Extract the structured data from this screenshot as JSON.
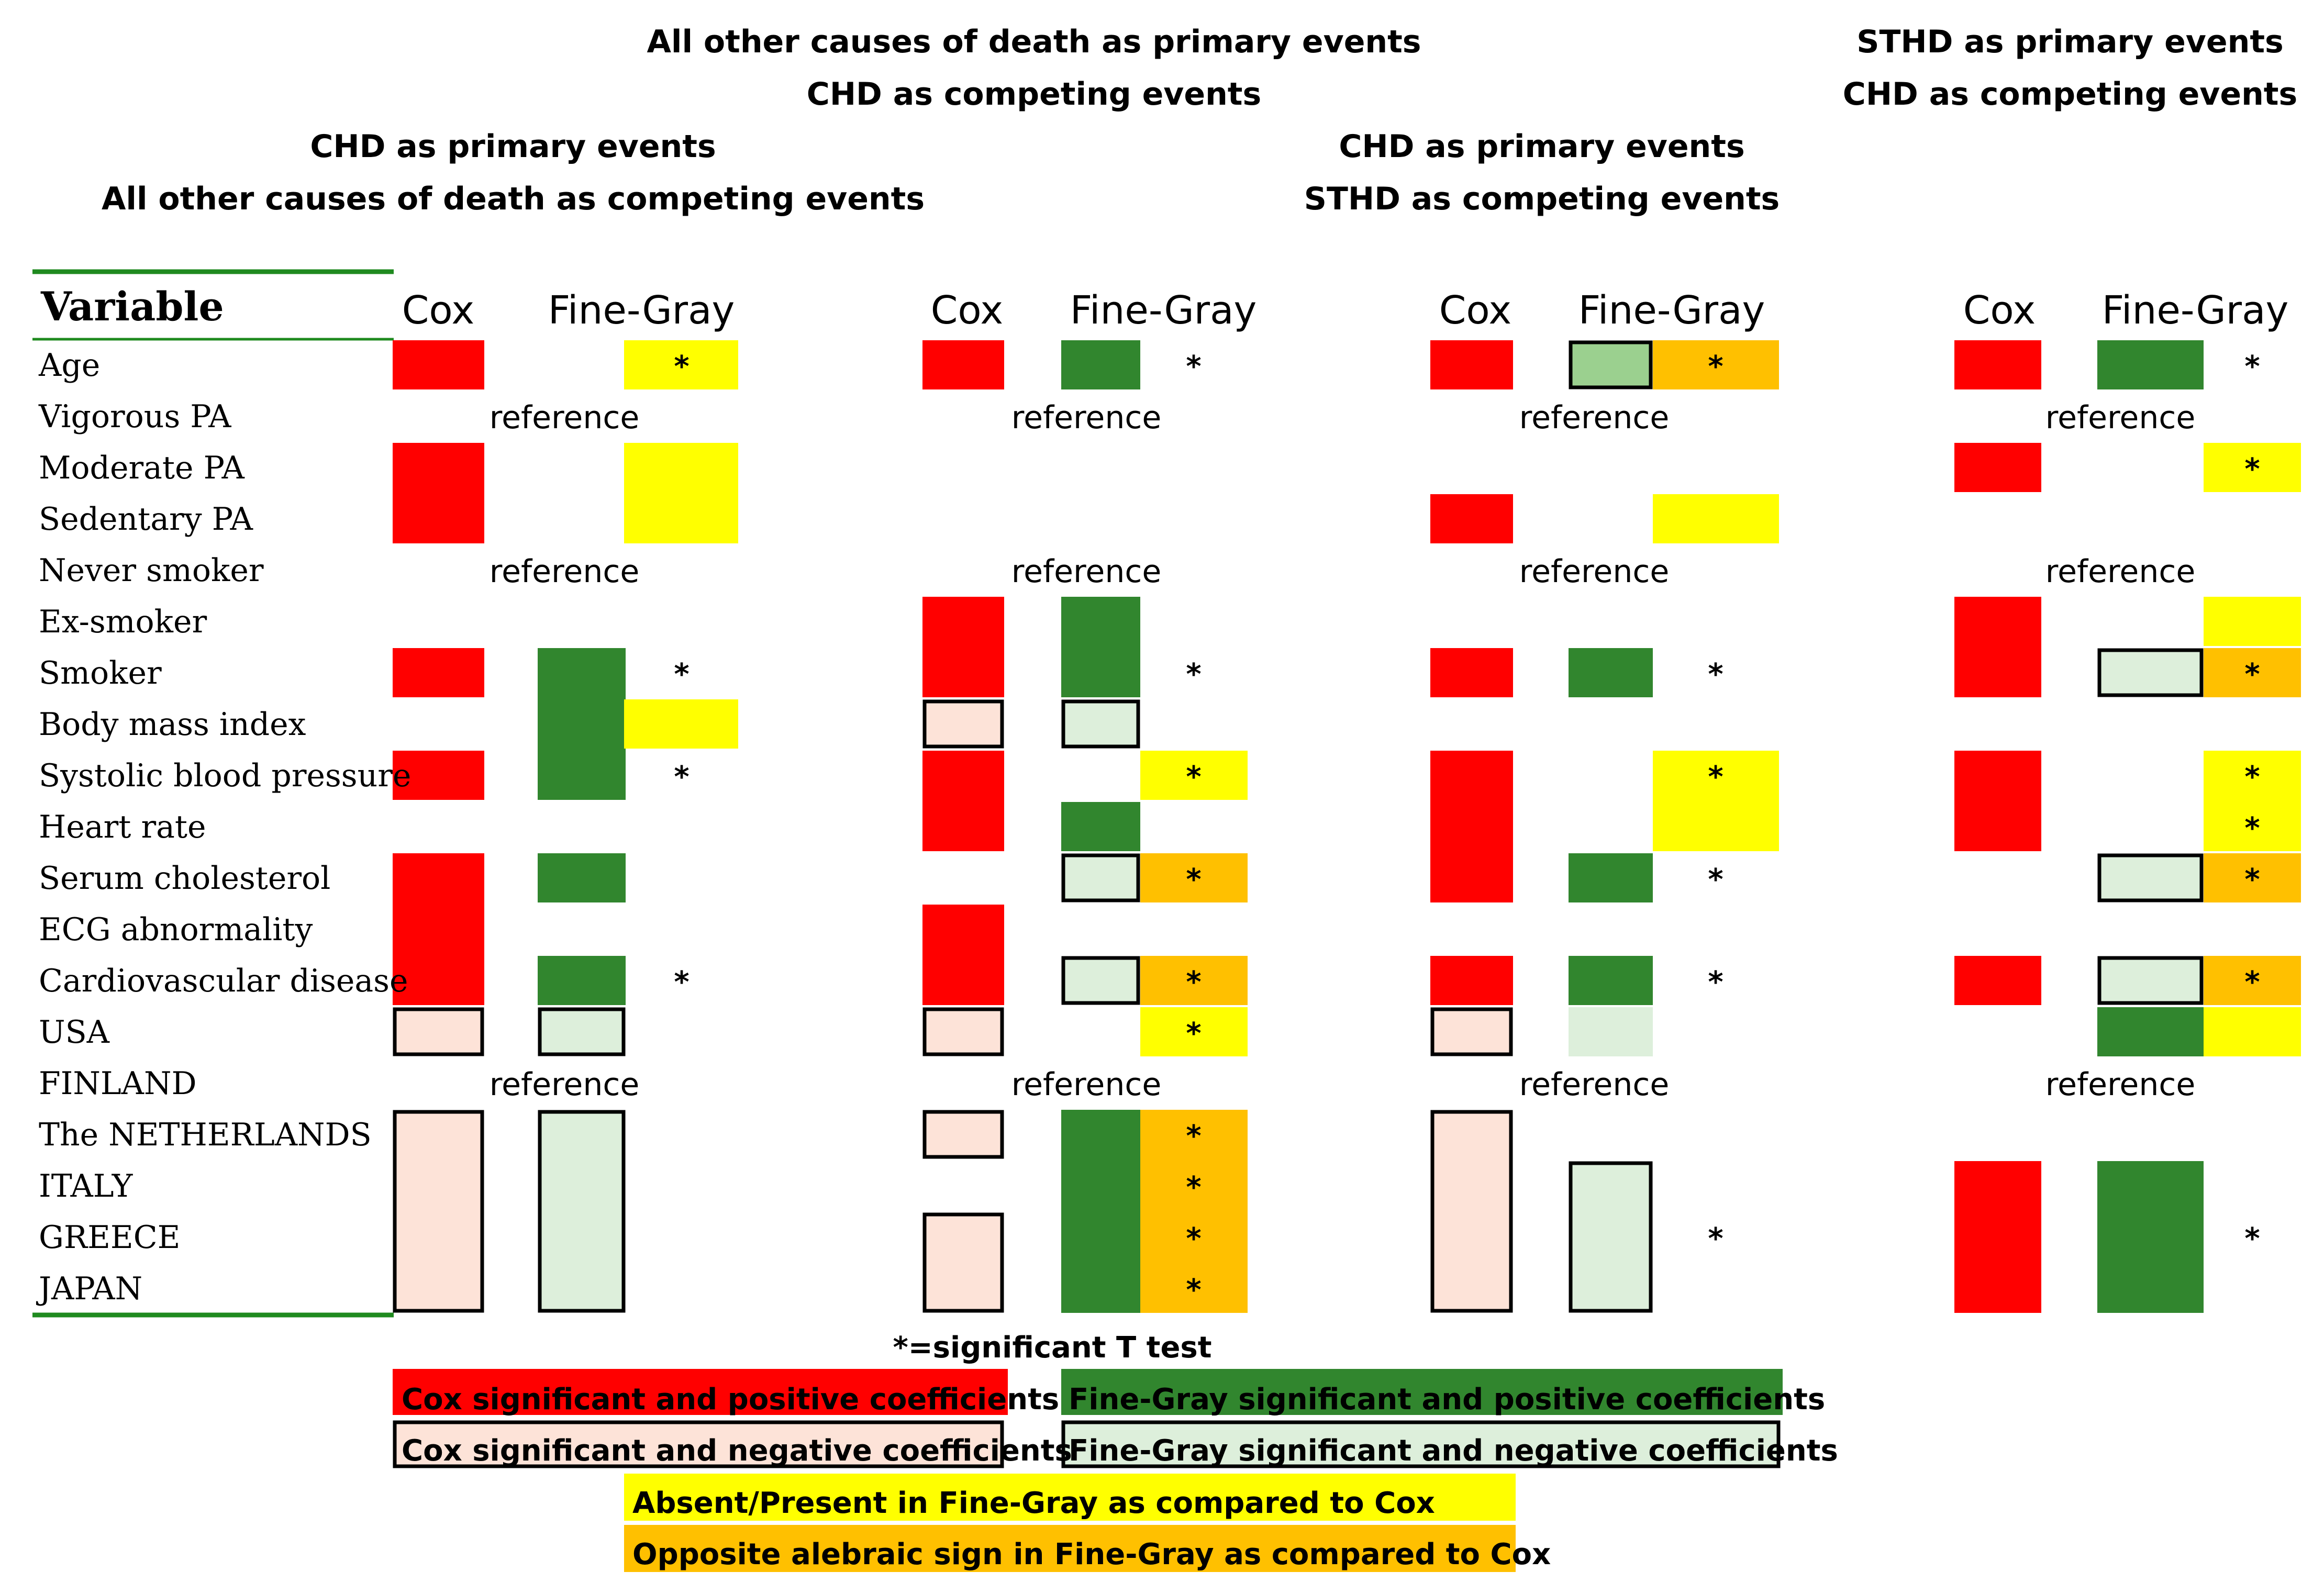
{
  "headers": {
    "top_center_1": "All other causes of death as primary events",
    "top_center_2": "CHD as competing events",
    "top_right_1": "STHD as primary events",
    "top_right_2": "CHD as competing events",
    "p1_1": "CHD as primary events",
    "p1_2": "All other causes of death as competing events",
    "p3_1": "CHD as primary events",
    "p3_2": "STHD as competing events"
  },
  "variable_header": "Variable",
  "cox_label": "Cox",
  "finegray_label": "Fine-Gray",
  "reference_label": "reference",
  "star": "*",
  "variables": [
    "Age",
    "Vigorous PA",
    "Moderate PA",
    "Sedentary PA",
    "Never smoker",
    "Ex-smoker",
    "Smoker",
    "Body mass index",
    "Systolic blood pressure",
    "Heart rate",
    "Serum cholesterol",
    "ECG abnormality",
    "Cardiovascular disease",
    "USA",
    "FINLAND",
    "The NETHERLANDS",
    "ITALY",
    "GREECE",
    "JAPAN"
  ],
  "significance_note": "*=significant T test",
  "legend": {
    "cox_pos": "Cox significant and positive coefficients",
    "cox_neg": "Cox significant and negative coefficients",
    "fg_pos": "Fine-Gray significant and positive coefficients",
    "fg_neg": "Fine-Gray significant and negative coefficients",
    "absent": "Absent/Present in Fine-Gray as compared to Cox",
    "opposite": "Opposite alebraic sign in Fine-Gray as compared to Cox"
  },
  "colors": {
    "cox_pos": "#ff0000",
    "cox_neg": "#fde3d8",
    "fg_pos": "#31862e",
    "fg_neg": "#ddefdb",
    "fg_neg_light": "#9bd08f",
    "absent": "#ffff00",
    "opposite": "#ffc000",
    "rule": "#1f8a1f"
  },
  "panels": [
    {
      "id": "p1",
      "reference_rows": [
        1,
        4,
        14
      ],
      "stars": [
        0,
        6,
        8,
        12
      ],
      "cells": [
        {
          "col": "cox",
          "from": 0,
          "to": 0,
          "fill": "cox_pos"
        },
        {
          "col": "cox",
          "from": 2,
          "to": 3,
          "fill": "cox_pos"
        },
        {
          "col": "cox",
          "from": 6,
          "to": 6,
          "fill": "cox_pos"
        },
        {
          "col": "cox",
          "from": 8,
          "to": 8,
          "fill": "cox_pos"
        },
        {
          "col": "cox",
          "from": 10,
          "to": 12,
          "fill": "cox_pos"
        },
        {
          "col": "cox",
          "from": 13,
          "to": 13,
          "fill": "cox_neg",
          "outline": true
        },
        {
          "col": "cox",
          "from": 15,
          "to": 18,
          "fill": "cox_neg",
          "outline": true
        },
        {
          "col": "fg",
          "from": 6,
          "to": 8,
          "fill": "fg_pos"
        },
        {
          "col": "fg",
          "from": 10,
          "to": 10,
          "fill": "fg_pos"
        },
        {
          "col": "fg",
          "from": 12,
          "to": 12,
          "fill": "fg_pos"
        },
        {
          "col": "fg",
          "from": 13,
          "to": 13,
          "fill": "fg_neg",
          "outline": true
        },
        {
          "col": "fg",
          "from": 15,
          "to": 18,
          "fill": "fg_neg",
          "outline": true
        },
        {
          "col": "mark",
          "from": 0,
          "to": 0,
          "fill": "absent"
        },
        {
          "col": "mark",
          "from": 2,
          "to": 3,
          "fill": "absent"
        },
        {
          "col": "mark",
          "from": 7,
          "to": 7,
          "fill": "absent"
        }
      ]
    },
    {
      "id": "p2",
      "reference_rows": [
        1,
        4,
        14
      ],
      "stars": [
        0,
        6,
        8,
        10,
        12,
        13,
        15,
        16,
        17,
        18
      ],
      "cells": [
        {
          "col": "cox",
          "from": 0,
          "to": 0,
          "fill": "cox_pos"
        },
        {
          "col": "cox",
          "from": 5,
          "to": 6,
          "fill": "cox_pos"
        },
        {
          "col": "cox",
          "from": 7,
          "to": 7,
          "fill": "cox_neg",
          "outline": true
        },
        {
          "col": "cox",
          "from": 8,
          "to": 9,
          "fill": "cox_pos"
        },
        {
          "col": "cox",
          "from": 11,
          "to": 12,
          "fill": "cox_pos"
        },
        {
          "col": "cox",
          "from": 13,
          "to": 13,
          "fill": "cox_neg",
          "outline": true
        },
        {
          "col": "cox",
          "from": 15,
          "to": 15,
          "fill": "cox_neg",
          "outline": true
        },
        {
          "col": "cox",
          "from": 17,
          "to": 18,
          "fill": "cox_neg",
          "outline": true
        },
        {
          "col": "fg",
          "from": 0,
          "to": 0,
          "fill": "fg_pos"
        },
        {
          "col": "fg",
          "from": 5,
          "to": 6,
          "fill": "fg_pos"
        },
        {
          "col": "fg",
          "from": 7,
          "to": 7,
          "fill": "fg_neg",
          "outline": true
        },
        {
          "col": "fg",
          "from": 9,
          "to": 9,
          "fill": "fg_pos"
        },
        {
          "col": "fg",
          "from": 10,
          "to": 10,
          "fill": "fg_neg",
          "outline": true
        },
        {
          "col": "fg",
          "from": 12,
          "to": 12,
          "fill": "fg_neg",
          "outline": true
        },
        {
          "col": "fg",
          "from": 15,
          "to": 18,
          "fill": "fg_pos"
        },
        {
          "col": "mark",
          "from": 8,
          "to": 8,
          "fill": "absent"
        },
        {
          "col": "mark",
          "from": 10,
          "to": 10,
          "fill": "opposite"
        },
        {
          "col": "mark",
          "from": 12,
          "to": 12,
          "fill": "opposite"
        },
        {
          "col": "mark",
          "from": 13,
          "to": 13,
          "fill": "absent"
        },
        {
          "col": "mark",
          "from": 15,
          "to": 18,
          "fill": "opposite"
        }
      ]
    },
    {
      "id": "p3",
      "reference_rows": [
        1,
        4,
        14
      ],
      "stars": [
        0,
        6,
        8,
        10,
        12,
        17
      ],
      "cells": [
        {
          "col": "cox",
          "from": 0,
          "to": 0,
          "fill": "cox_pos"
        },
        {
          "col": "cox",
          "from": 3,
          "to": 3,
          "fill": "cox_pos"
        },
        {
          "col": "cox",
          "from": 6,
          "to": 6,
          "fill": "cox_pos"
        },
        {
          "col": "cox",
          "from": 8,
          "to": 10,
          "fill": "cox_pos"
        },
        {
          "col": "cox",
          "from": 12,
          "to": 12,
          "fill": "cox_pos"
        },
        {
          "col": "cox",
          "from": 13,
          "to": 13,
          "fill": "cox_neg",
          "outline": true
        },
        {
          "col": "cox",
          "from": 15,
          "to": 18,
          "fill": "cox_neg",
          "outline": true
        },
        {
          "col": "fg",
          "from": 0,
          "to": 0,
          "fill": "fg_neg_light",
          "outline": true
        },
        {
          "col": "fg",
          "from": 6,
          "to": 6,
          "fill": "fg_pos"
        },
        {
          "col": "fg",
          "from": 10,
          "to": 10,
          "fill": "fg_pos"
        },
        {
          "col": "fg",
          "from": 12,
          "to": 12,
          "fill": "fg_pos"
        },
        {
          "col": "fg",
          "from": 13,
          "to": 13,
          "fill": "fg_neg"
        },
        {
          "col": "fg",
          "from": 16,
          "to": 18,
          "fill": "fg_neg",
          "outline": true
        },
        {
          "col": "mark",
          "from": 0,
          "to": 0,
          "fill": "opposite"
        },
        {
          "col": "mark",
          "from": 3,
          "to": 3,
          "fill": "absent"
        },
        {
          "col": "mark",
          "from": 8,
          "to": 9,
          "fill": "absent"
        }
      ]
    },
    {
      "id": "p4",
      "reference_rows": [
        1,
        4,
        14
      ],
      "stars": [
        0,
        2,
        6,
        8,
        9,
        10,
        12,
        17
      ],
      "cells": [
        {
          "col": "cox",
          "from": 0,
          "to": 0,
          "fill": "cox_pos"
        },
        {
          "col": "cox",
          "from": 2,
          "to": 2,
          "fill": "cox_pos"
        },
        {
          "col": "cox",
          "from": 5,
          "to": 6,
          "fill": "cox_pos"
        },
        {
          "col": "cox",
          "from": 8,
          "to": 9,
          "fill": "cox_pos"
        },
        {
          "col": "cox",
          "from": 12,
          "to": 12,
          "fill": "cox_pos"
        },
        {
          "col": "cox",
          "from": 16,
          "to": 18,
          "fill": "cox_pos"
        },
        {
          "col": "fg",
          "from": 0,
          "to": 0,
          "fill": "fg_pos"
        },
        {
          "col": "fg",
          "from": 6,
          "to": 6,
          "fill": "fg_neg",
          "outline": true
        },
        {
          "col": "fg",
          "from": 10,
          "to": 10,
          "fill": "fg_neg",
          "outline": true
        },
        {
          "col": "fg",
          "from": 12,
          "to": 12,
          "fill": "fg_neg",
          "outline": true
        },
        {
          "col": "fg",
          "from": 13,
          "to": 13,
          "fill": "fg_pos"
        },
        {
          "col": "fg",
          "from": 16,
          "to": 18,
          "fill": "fg_pos"
        },
        {
          "col": "mark",
          "from": 2,
          "to": 2,
          "fill": "absent"
        },
        {
          "col": "mark",
          "from": 5,
          "to": 5,
          "fill": "absent"
        },
        {
          "col": "mark",
          "from": 6,
          "to": 6,
          "fill": "opposite"
        },
        {
          "col": "mark",
          "from": 8,
          "to": 9,
          "fill": "absent"
        },
        {
          "col": "mark",
          "from": 10,
          "to": 10,
          "fill": "opposite"
        },
        {
          "col": "mark",
          "from": 12,
          "to": 12,
          "fill": "opposite"
        },
        {
          "col": "mark",
          "from": 13,
          "to": 13,
          "fill": "absent"
        }
      ]
    }
  ]
}
